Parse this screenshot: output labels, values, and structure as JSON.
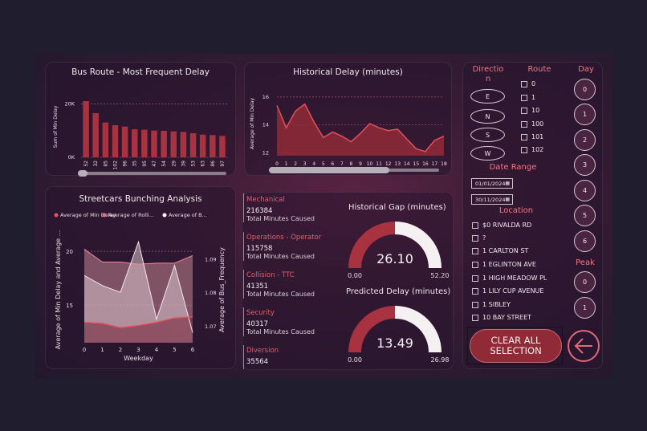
{
  "bus_route": {
    "title": "Bus Route - Most Frequent Delay",
    "ylabel": "Sum of Min Delay",
    "chart_data": {
      "type": "bar",
      "categories": [
        "52",
        "32",
        "85",
        "102",
        "96",
        "35",
        "95",
        "47",
        "54",
        "29",
        "39",
        "53",
        "63",
        "86",
        "97"
      ],
      "values": [
        21000,
        16500,
        13000,
        12000,
        11500,
        10500,
        10300,
        10000,
        9900,
        9700,
        9500,
        9000,
        8500,
        8300,
        8000
      ],
      "yticks": [
        "20K",
        "0K"
      ],
      "ylim": [
        0,
        24000
      ]
    }
  },
  "historical_delay": {
    "title": "Historical Delay (minutes)",
    "ylabel": "Average of Min Delay",
    "xlabel": "Hour",
    "chart_data": {
      "type": "area",
      "x": [
        0,
        1,
        2,
        3,
        4,
        5,
        6,
        7,
        8,
        9,
        10,
        11,
        12,
        13,
        14,
        15,
        16,
        17,
        18
      ],
      "values": [
        15.4,
        13.8,
        15.0,
        15.5,
        14.2,
        13.1,
        13.5,
        13.2,
        12.8,
        13.4,
        14.1,
        13.8,
        13.6,
        13.7,
        13.0,
        12.3,
        12.1,
        12.9,
        13.2
      ],
      "yticks": [
        "16",
        "14",
        "12"
      ],
      "ylim": [
        11.8,
        16.4
      ]
    }
  },
  "bunching": {
    "title": "Streetcars Bunching Analysis",
    "legend": [
      "Average of Min Delay",
      "Average of Rolli...",
      "Average of B..."
    ],
    "legend_colors": [
      "#e8505e",
      "#e8707a",
      "#ffffff"
    ],
    "ylabel_left": "Average of Min Delay and Average ...",
    "ylabel_right": "Average of Bus_Frequency",
    "xlabel": "Weekday",
    "chart_data": {
      "type": "area",
      "x": [
        0,
        1,
        2,
        3,
        4,
        5,
        6
      ],
      "series": [
        {
          "name": "Average of Min Delay",
          "values": [
            13.4,
            13.3,
            12.9,
            13.1,
            13.4,
            13.8,
            13.9
          ]
        },
        {
          "name": "Average of Rolling",
          "values": [
            20.2,
            19.0,
            19.0,
            18.8,
            18.9,
            18.9,
            19.6
          ]
        },
        {
          "name": "Average of Bus_Frequency",
          "values": [
            1.085,
            1.082,
            1.08,
            1.095,
            1.072,
            1.088,
            1.068
          ]
        }
      ],
      "left_ticks": [
        "20",
        "15"
      ],
      "right_ticks": [
        "1.09",
        "1.08",
        "1.07"
      ],
      "xticks": [
        "0",
        "1",
        "2",
        "3",
        "4",
        "5",
        "6"
      ],
      "left_ylim": [
        11.5,
        21.5
      ],
      "right_ylim": [
        1.065,
        1.097
      ]
    }
  },
  "causes": [
    {
      "name": "Mechanical",
      "value": "216384",
      "sub": "Total Minutes Caused"
    },
    {
      "name": "Operations - Operator",
      "value": "115758",
      "sub": "Total Minutes Caused"
    },
    {
      "name": "Collision - TTC",
      "value": "41351",
      "sub": "Total Minutes Caused"
    },
    {
      "name": "Security",
      "value": "40317",
      "sub": "Total Minutes Caused"
    },
    {
      "name": "Diversion",
      "value": "35564",
      "sub": ""
    }
  ],
  "gauge_gap": {
    "title": "Historical Gap (minutes)",
    "value": "26.10",
    "min": "0.00",
    "max": "52.20",
    "fraction": 0.5
  },
  "gauge_pred": {
    "title": "Predicted Delay (minutes)",
    "value": "13.49",
    "min": "0.00",
    "max": "26.98",
    "fraction": 0.5
  },
  "slicers": {
    "direction_title": "Directio n",
    "direction_title_line1": "Directio",
    "direction_title_line2": "n",
    "directions": [
      "E",
      "N",
      "S",
      "W"
    ],
    "route_title": "Route",
    "routes": [
      "0",
      "1",
      "10",
      "100",
      "101",
      "102"
    ],
    "day_title": "Day",
    "days": [
      "0",
      "1",
      "2",
      "3",
      "4",
      "5",
      "6"
    ],
    "date_title": "Date Range",
    "date_from": "01/01/2024",
    "date_to": "30/11/2024",
    "location_title": "Location",
    "locations": [
      "$0 RIVALDA RD",
      "?",
      "1 CARLTON ST",
      "1 EGLINTON AVE",
      "1 HIGH MEADOW PL",
      "1 LILY CUP AVENUE",
      "1 SIBLEY",
      "10 BAY STREET"
    ],
    "peak_title": "Peak",
    "peaks": [
      "0",
      "1"
    ],
    "clear_line1": "CLEAR ALL",
    "clear_line2": "SELECTION"
  },
  "colors": {
    "accent": "#a8323f",
    "accent_light": "#e0606e",
    "gauge_rest": "#f5f0f2"
  },
  "icons": {
    "back": "back-arrow-icon",
    "calendar": "calendar-icon"
  }
}
